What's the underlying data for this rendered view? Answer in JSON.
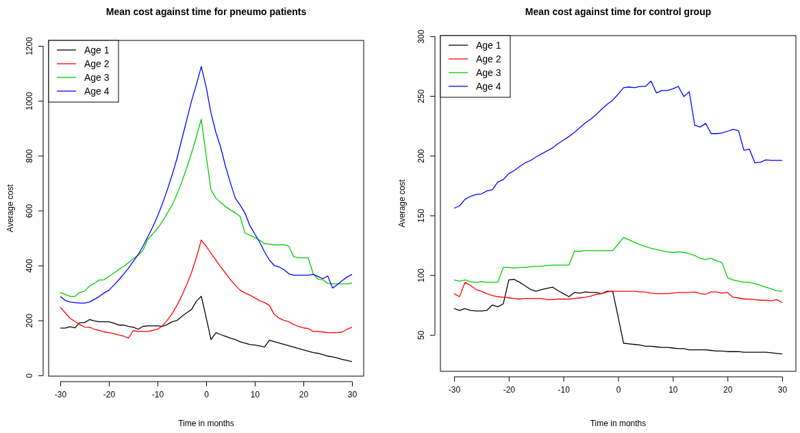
{
  "chart_data": [
    {
      "type": "line",
      "title": "Mean cost against time for pneumo patients",
      "xlabel": "Time in months",
      "ylabel": "Average cost",
      "legend": "top left",
      "grid": false,
      "xlim": [
        -32.4,
        32.4
      ],
      "xticks": [
        -30,
        -20,
        -10,
        0,
        10,
        20,
        30
      ],
      "ylim": [
        -3,
        1220
      ],
      "yticks": [
        0,
        200,
        400,
        600,
        800,
        1000,
        1200
      ],
      "x": [
        -30,
        -29,
        -28,
        -27,
        -26,
        -25,
        -24,
        -23,
        -22,
        -21,
        -20,
        -19,
        -18,
        -17,
        -16,
        -15,
        -14,
        -13,
        -12,
        -11,
        -10,
        -9,
        -8,
        -7,
        -6,
        -5,
        -4,
        -3,
        -2,
        -1,
        0,
        1,
        2,
        3,
        4,
        5,
        6,
        7,
        8,
        9,
        10,
        11,
        12,
        13,
        14,
        15,
        16,
        17,
        18,
        19,
        20,
        21,
        22,
        23,
        24,
        25,
        26,
        27,
        28,
        29,
        30
      ],
      "series": [
        {
          "name": "Age 1",
          "color": "#000000",
          "values": [
            172,
            172,
            177,
            173,
            192,
            192,
            203,
            198,
            195,
            195,
            195,
            190,
            183,
            183,
            178,
            175,
            168,
            178,
            180,
            180,
            180,
            178,
            185,
            195,
            200,
            215,
            228,
            240,
            270,
            288,
            210,
            130,
            155,
            148,
            142,
            135,
            130,
            122,
            117,
            112,
            110,
            107,
            103,
            128,
            123,
            118,
            113,
            108,
            103,
            98,
            93,
            88,
            83,
            80,
            75,
            70,
            67,
            63,
            58,
            54,
            50
          ]
        },
        {
          "name": "Age 2",
          "color": "#ff0000",
          "values": [
            248,
            228,
            208,
            196,
            185,
            176,
            175,
            168,
            163,
            158,
            155,
            152,
            147,
            143,
            135,
            163,
            160,
            160,
            160,
            163,
            168,
            180,
            200,
            225,
            255,
            290,
            330,
            375,
            430,
            493,
            470,
            445,
            420,
            395,
            372,
            348,
            328,
            310,
            300,
            292,
            282,
            272,
            265,
            255,
            222,
            208,
            200,
            195,
            185,
            178,
            173,
            170,
            160,
            160,
            158,
            155,
            155,
            155,
            158,
            168,
            175
          ]
        },
        {
          "name": "Age 3",
          "color": "#00cd00",
          "values": [
            302,
            295,
            288,
            287,
            302,
            307,
            325,
            335,
            347,
            348,
            360,
            372,
            385,
            397,
            410,
            425,
            437,
            455,
            495,
            515,
            535,
            560,
            590,
            620,
            660,
            705,
            755,
            810,
            870,
            933,
            800,
            675,
            645,
            630,
            615,
            602,
            592,
            578,
            518,
            510,
            502,
            492,
            480,
            478,
            475,
            475,
            476,
            470,
            432,
            428,
            428,
            428,
            370,
            350,
            348,
            335,
            333,
            333,
            333,
            333,
            337
          ]
        },
        {
          "name": "Age 4",
          "color": "#0000ff",
          "values": [
            288,
            273,
            267,
            265,
            263,
            263,
            267,
            277,
            287,
            300,
            310,
            328,
            347,
            368,
            390,
            415,
            440,
            470,
            505,
            540,
            580,
            625,
            675,
            730,
            790,
            860,
            930,
            1000,
            1060,
            1125,
            1050,
            955,
            885,
            830,
            760,
            700,
            645,
            620,
            590,
            545,
            515,
            485,
            450,
            420,
            400,
            395,
            385,
            370,
            365,
            365,
            365,
            365,
            368,
            360,
            352,
            362,
            318,
            330,
            345,
            358,
            368
          ]
        }
      ]
    },
    {
      "type": "line",
      "title": "Mean cost against time for control group",
      "xlabel": "Time in months",
      "ylabel": "Average cost",
      "legend": "top left",
      "grid": false,
      "xlim": [
        -32.5,
        32.5
      ],
      "xticks": [
        -30,
        -20,
        -10,
        0,
        10,
        20,
        30
      ],
      "ylim": [
        19.5,
        300.5
      ],
      "yticks": [
        50,
        100,
        150,
        200,
        250,
        300
      ],
      "x": [
        -30,
        -29,
        -28,
        -27,
        -26,
        -25,
        -24,
        -23,
        -22,
        -21,
        -20,
        -19,
        -18,
        -17,
        -16,
        -15,
        -14,
        -13,
        -12,
        -11,
        -10,
        -9,
        -8,
        -7,
        -6,
        -5,
        -4,
        -3,
        -2,
        -1,
        0,
        1,
        2,
        3,
        4,
        5,
        6,
        7,
        8,
        9,
        10,
        11,
        12,
        13,
        14,
        15,
        16,
        17,
        18,
        19,
        20,
        21,
        22,
        23,
        24,
        25,
        26,
        27,
        28,
        29,
        30
      ],
      "series": [
        {
          "name": "Age 1",
          "color": "#000000",
          "values": [
            72,
            70.5,
            72,
            70.5,
            70,
            70,
            70.5,
            75,
            73.5,
            76,
            96,
            96.5,
            94,
            91,
            88,
            86.5,
            88,
            89,
            90,
            87,
            84.5,
            82,
            85.5,
            85,
            86,
            85.5,
            85.5,
            84.5,
            86.5,
            86.5,
            65,
            43,
            42.5,
            42,
            41.5,
            40.5,
            40.5,
            40,
            39.5,
            39.5,
            39,
            38.5,
            38.5,
            37.5,
            37.5,
            37.5,
            37.5,
            37,
            36.5,
            36.5,
            36,
            36,
            36,
            35.5,
            35.5,
            35.5,
            35.5,
            35.5,
            35,
            34.5,
            34
          ]
        },
        {
          "name": "Age 2",
          "color": "#ff0000",
          "values": [
            84.5,
            82,
            94,
            91.5,
            88,
            86.5,
            84.5,
            83,
            82,
            81.5,
            81,
            80.5,
            80,
            80.5,
            80.5,
            80.5,
            80.5,
            79.5,
            79.5,
            80,
            80,
            80,
            80.5,
            81,
            81.5,
            82.5,
            84,
            84.5,
            86,
            86.5,
            86.5,
            86.5,
            86.5,
            86.5,
            86,
            86,
            85,
            84.5,
            84.5,
            84.5,
            85,
            85.5,
            85.5,
            85.5,
            86,
            84.5,
            84,
            86,
            86,
            85,
            85.5,
            81.5,
            81,
            80,
            80,
            79.5,
            79,
            79,
            78.5,
            79.5,
            77
          ]
        },
        {
          "name": "Age 3",
          "color": "#00cd00",
          "values": [
            96,
            95,
            96,
            94.5,
            94,
            94.5,
            94,
            94,
            94,
            106.5,
            106.5,
            106,
            106.5,
            106.5,
            107,
            107.5,
            107.5,
            108,
            108.5,
            108.5,
            108.5,
            108.5,
            120,
            120,
            120.5,
            120.5,
            120.5,
            120.5,
            120.5,
            120.5,
            126,
            131.5,
            129.5,
            127.5,
            125.5,
            124,
            122.5,
            121.5,
            120.5,
            119.5,
            119,
            119.5,
            119,
            118,
            116.5,
            114,
            113,
            114,
            112,
            110.5,
            98,
            96,
            95,
            94,
            94,
            93,
            91.5,
            90,
            88.5,
            87,
            86.5
          ]
        },
        {
          "name": "Age 4",
          "color": "#0000ff",
          "values": [
            156,
            158,
            163.5,
            166,
            167.5,
            168,
            170.5,
            171.5,
            178,
            180,
            185,
            187.5,
            191,
            194,
            196,
            199,
            201.5,
            204,
            206.5,
            210,
            213,
            216,
            219.5,
            223.5,
            227.5,
            230.5,
            234.5,
            239,
            243,
            246.5,
            251.5,
            257,
            257.5,
            257,
            258,
            258,
            262.5,
            252.5,
            254.5,
            254.5,
            256,
            258,
            249.5,
            253.5,
            225.5,
            224,
            227,
            218.5,
            218.5,
            219,
            220.5,
            222,
            221,
            204.5,
            205.5,
            194,
            194.5,
            196.5,
            196,
            196,
            196
          ]
        }
      ]
    }
  ]
}
